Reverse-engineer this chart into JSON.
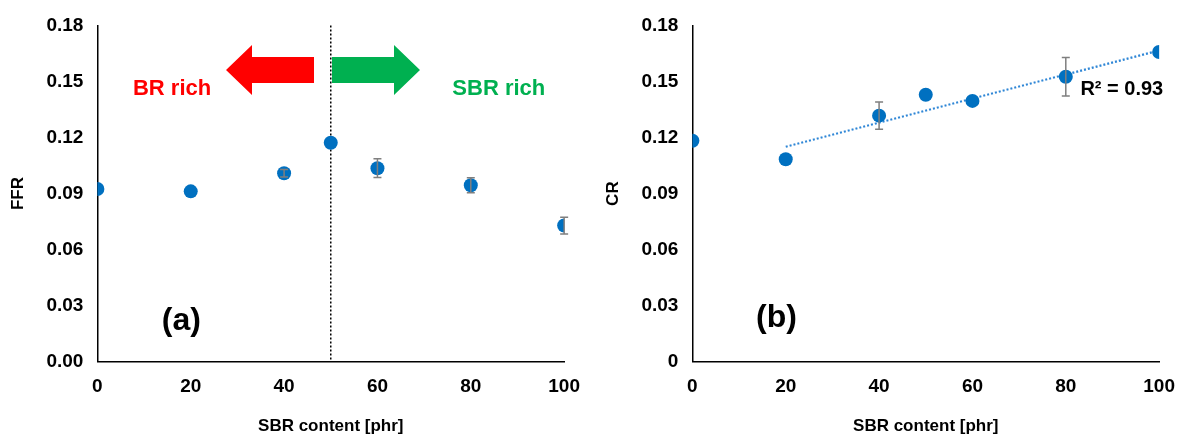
{
  "chart_data": [
    {
      "type": "scatter",
      "xlabel": "SBR content [phr]",
      "ylabel": "FFR",
      "x": [
        0,
        20,
        40,
        50,
        60,
        80,
        100
      ],
      "series": [
        {
          "color": "#0070c0",
          "values": [
            0.0925,
            0.0912,
            0.1009,
            0.1172,
            0.1036,
            0.0945,
            0.0729
          ],
          "errors": [
            null,
            null,
            0.002,
            null,
            0.005,
            0.004,
            0.0045
          ]
        }
      ],
      "xlim": [
        0,
        100
      ],
      "xticks": [
        0,
        20,
        40,
        60,
        80,
        100
      ],
      "ylim": [
        0,
        0.18
      ],
      "yticks": [
        {
          "value": 0,
          "label": "0.00"
        },
        {
          "value": 0.03,
          "label": "0.03"
        },
        {
          "value": 0.06,
          "label": "0.06"
        },
        {
          "value": 0.09,
          "label": "0.09"
        },
        {
          "value": 0.12,
          "label": "0.12"
        },
        {
          "value": 0.15,
          "label": "0.15"
        },
        {
          "value": 0.18,
          "label": "0.18"
        }
      ],
      "ref_lines": [
        {
          "axis": "x",
          "value": 50,
          "color": "#000000",
          "line_style": "dotted"
        }
      ],
      "annotations": [
        "BR rich",
        "SBR rich",
        "(a)"
      ],
      "grid": false,
      "legend": false,
      "marker": "circle"
    },
    {
      "type": "scatter",
      "xlabel": "SBR content [phr]",
      "ylabel": "CR",
      "x": [
        0,
        20,
        40,
        50,
        60,
        80,
        100
      ],
      "series": [
        {
          "color": "#0070c0",
          "values": [
            0.1183,
            0.1084,
            0.1317,
            0.1429,
            0.1396,
            0.1525,
            0.1658
          ],
          "errors": [
            null,
            null,
            0.0073,
            null,
            null,
            0.0103,
            null
          ]
        },
        {
          "type": "line",
          "x": [
            20,
            100
          ],
          "values": [
            0.1151,
            0.1666
          ],
          "color": "#2e86d6",
          "line_style": "dotted",
          "marker": "none"
        }
      ],
      "xlim": [
        0,
        100
      ],
      "xticks": [
        0,
        20,
        40,
        60,
        80,
        100
      ],
      "ylim": [
        0,
        0.18
      ],
      "yticks": [
        0,
        0.03,
        0.06,
        0.09,
        0.12,
        0.15,
        0.18
      ],
      "annotations": [
        "(b)",
        "R² = 0.93"
      ],
      "grid": false,
      "legend": false,
      "marker": "circle"
    }
  ]
}
